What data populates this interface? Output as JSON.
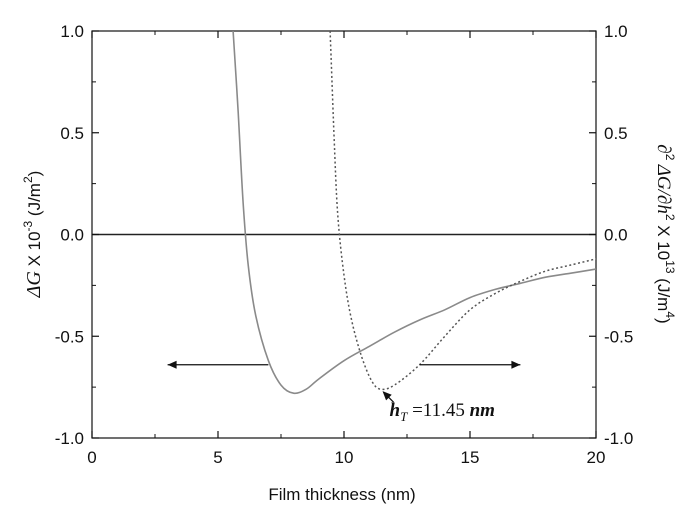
{
  "chart_data": {
    "type": "line",
    "xlabel": "Film thickness (nm)",
    "ylabel_left": {
      "delta": "ΔG",
      "main": " X 10",
      "exp1": "-3",
      "unit": " (J/m",
      "exp2": "2",
      "close": ")"
    },
    "ylabel_right": {
      "d1": "∂",
      "s1": "2",
      "dg": " ΔG/∂h",
      "s2": "2",
      "mid": " X 10",
      "s3": "13",
      "unit": " (J/m",
      "s4": "4",
      "close": ")"
    },
    "xlim": [
      0,
      20
    ],
    "ylim_left": [
      -1.0,
      1.0
    ],
    "ylim_right": [
      -1.0,
      1.0
    ],
    "x_ticks": [
      "0",
      "5",
      "10",
      "15",
      "20"
    ],
    "y_ticks_left": [
      "-1.0",
      "-0.5",
      "0.0",
      "0.5",
      "1.0"
    ],
    "y_ticks_right": [
      "-1.0",
      "-0.5",
      "0.0",
      "0.5",
      "1.0"
    ],
    "grid": false,
    "series": [
      {
        "axis": "left",
        "style": "solid",
        "color": "#8a8a8a",
        "points": [
          [
            5.6,
            1.0
          ],
          [
            5.8,
            0.6
          ],
          [
            6.0,
            0.15
          ],
          [
            6.2,
            -0.15
          ],
          [
            6.5,
            -0.4
          ],
          [
            7.0,
            -0.62
          ],
          [
            7.5,
            -0.74
          ],
          [
            8.0,
            -0.78
          ],
          [
            8.5,
            -0.76
          ],
          [
            9.0,
            -0.71
          ],
          [
            10.0,
            -0.62
          ],
          [
            11.0,
            -0.55
          ],
          [
            12.0,
            -0.48
          ],
          [
            13.0,
            -0.42
          ],
          [
            14.0,
            -0.37
          ],
          [
            15.0,
            -0.31
          ],
          [
            16.0,
            -0.27
          ],
          [
            17.0,
            -0.24
          ],
          [
            18.0,
            -0.21
          ],
          [
            19.0,
            -0.19
          ],
          [
            20.0,
            -0.17
          ]
        ]
      },
      {
        "axis": "right",
        "style": "dotted",
        "color": "#555555",
        "points": [
          [
            9.45,
            1.0
          ],
          [
            9.6,
            0.5
          ],
          [
            9.75,
            0.1
          ],
          [
            10.0,
            -0.2
          ],
          [
            10.3,
            -0.42
          ],
          [
            10.7,
            -0.6
          ],
          [
            11.1,
            -0.72
          ],
          [
            11.45,
            -0.76
          ],
          [
            12.0,
            -0.74
          ],
          [
            13.0,
            -0.64
          ],
          [
            14.0,
            -0.5
          ],
          [
            15.0,
            -0.37
          ],
          [
            16.0,
            -0.29
          ],
          [
            17.0,
            -0.23
          ],
          [
            18.0,
            -0.18
          ],
          [
            19.0,
            -0.15
          ],
          [
            20.0,
            -0.12
          ]
        ]
      }
    ],
    "reference_line": {
      "y": 0.0
    },
    "arrows": [
      {
        "direction": "left",
        "y": -0.64,
        "x_from": 7.0,
        "x_to": 3.0
      },
      {
        "direction": "right",
        "y": -0.64,
        "x_from": 13.0,
        "x_to": 17.0
      }
    ],
    "annotation": {
      "h": "h",
      "sub": "T",
      "eq": " =11.45 ",
      "unit": "nm",
      "point": [
        11.45,
        -0.76
      ]
    }
  }
}
